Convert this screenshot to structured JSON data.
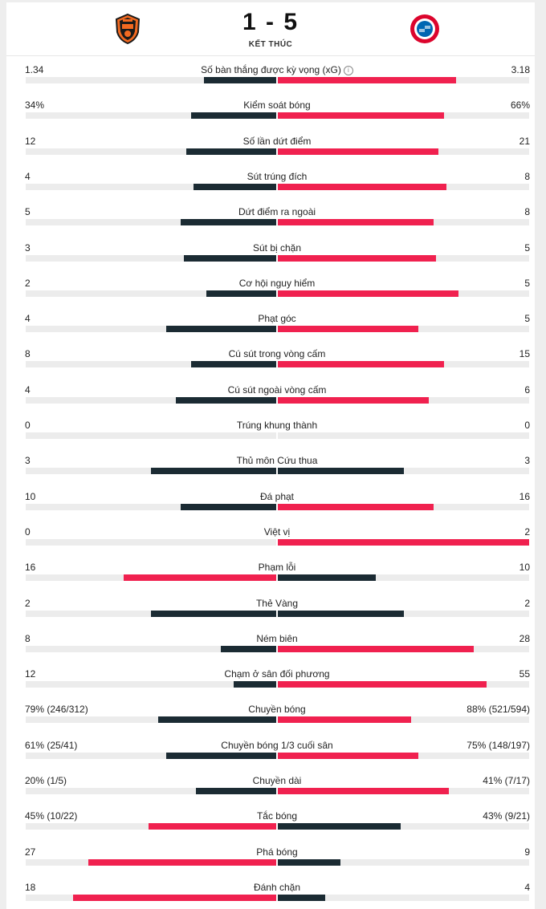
{
  "match": {
    "score": "1 - 5",
    "status": "KẾT THÚC",
    "home_logo": "shakhtar-crest-icon",
    "away_logo": "bayern-crest-icon"
  },
  "colors": {
    "home_bar": "#1b2b33",
    "away_bar": "#f0214f",
    "winner_bar": "#f0214f",
    "track": "#ececec"
  },
  "stats": [
    {
      "label": "Số bàn thắng được kỳ vọng (xG)",
      "home": "1.34",
      "away": "3.18",
      "home_frac": 0.29,
      "away_frac": 0.71,
      "info": true
    },
    {
      "label": "Kiểm soát bóng",
      "home": "34%",
      "away": "66%",
      "home_frac": 0.34,
      "away_frac": 0.66
    },
    {
      "label": "Số lần dứt điểm",
      "home": "12",
      "away": "21",
      "home_frac": 0.36,
      "away_frac": 0.64
    },
    {
      "label": "Sút trúng đích",
      "home": "4",
      "away": "8",
      "home_frac": 0.33,
      "away_frac": 0.67
    },
    {
      "label": "Dứt điểm ra ngoài",
      "home": "5",
      "away": "8",
      "home_frac": 0.38,
      "away_frac": 0.62
    },
    {
      "label": "Sút bị chặn",
      "home": "3",
      "away": "5",
      "home_frac": 0.37,
      "away_frac": 0.63
    },
    {
      "label": "Cơ hội nguy hiểm",
      "home": "2",
      "away": "5",
      "home_frac": 0.28,
      "away_frac": 0.72
    },
    {
      "label": "Phạt góc",
      "home": "4",
      "away": "5",
      "home_frac": 0.44,
      "away_frac": 0.56
    },
    {
      "label": "Cú sút trong vòng cấm",
      "home": "8",
      "away": "15",
      "home_frac": 0.34,
      "away_frac": 0.66
    },
    {
      "label": "Cú sút ngoài vòng cấm",
      "home": "4",
      "away": "6",
      "home_frac": 0.4,
      "away_frac": 0.6
    },
    {
      "label": "Trúng khung thành",
      "home": "0",
      "away": "0",
      "home_frac": 0,
      "away_frac": 0
    },
    {
      "label": "Thủ môn Cứu thua",
      "home": "3",
      "away": "3",
      "home_frac": 0.5,
      "away_frac": 0.5,
      "tie": true
    },
    {
      "label": "Đá phạt",
      "home": "10",
      "away": "16",
      "home_frac": 0.38,
      "away_frac": 0.62
    },
    {
      "label": "Việt vị",
      "home": "0",
      "away": "2",
      "home_frac": 0,
      "away_frac": 1
    },
    {
      "label": "Phạm lỗi",
      "home": "16",
      "away": "10",
      "home_frac": 0.61,
      "away_frac": 0.39,
      "home_wins": true
    },
    {
      "label": "Thẻ Vàng",
      "home": "2",
      "away": "2",
      "home_frac": 0.5,
      "away_frac": 0.5,
      "tie": true
    },
    {
      "label": "Ném biên",
      "home": "8",
      "away": "28",
      "home_frac": 0.22,
      "away_frac": 0.78
    },
    {
      "label": "Chạm ở sân đối phương",
      "home": "12",
      "away": "55",
      "home_frac": 0.17,
      "away_frac": 0.83
    },
    {
      "label": "Chuyền bóng",
      "home": "79% (246/312)",
      "away": "88% (521/594)",
      "home_frac": 0.47,
      "away_frac": 0.53
    },
    {
      "label": "Chuyền bóng 1/3 cuối sân",
      "home": "61% (25/41)",
      "away": "75% (148/197)",
      "home_frac": 0.44,
      "away_frac": 0.56
    },
    {
      "label": "Chuyền dài",
      "home": "20% (1/5)",
      "away": "41% (7/17)",
      "home_frac": 0.32,
      "away_frac": 0.68
    },
    {
      "label": "Tắc bóng",
      "home": "45% (10/22)",
      "away": "43% (9/21)",
      "home_frac": 0.51,
      "away_frac": 0.49,
      "home_wins": true
    },
    {
      "label": "Phá bóng",
      "home": "27",
      "away": "9",
      "home_frac": 0.75,
      "away_frac": 0.25,
      "home_wins": true
    },
    {
      "label": "Đánh chặn",
      "home": "18",
      "away": "4",
      "home_frac": 0.81,
      "away_frac": 0.19,
      "home_wins": true
    }
  ]
}
